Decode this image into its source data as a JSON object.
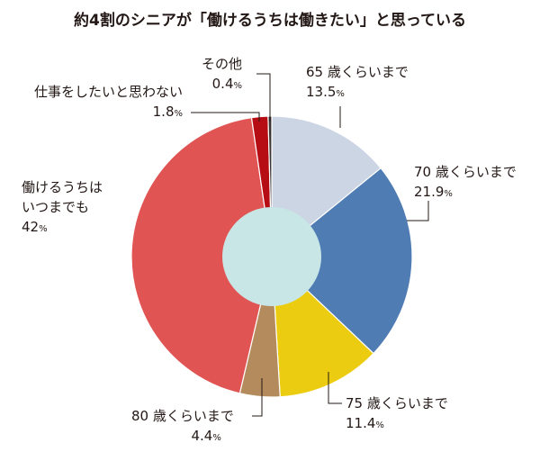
{
  "chart_data": {
    "type": "pie",
    "title": "約4割のシニアが「働けるうちは働きたい」と思っている",
    "unit": "%",
    "slices": [
      {
        "label": "65 歳くらいまで",
        "value": 13.5,
        "value_text": "13.5",
        "color": "#ccd5e4"
      },
      {
        "label": "70 歳くらいまで",
        "value": 21.9,
        "value_text": "21.9",
        "color": "#4e7cb3"
      },
      {
        "label": "75 歳くらいまで",
        "value": 11.4,
        "value_text": "11.4",
        "color": "#eccc10"
      },
      {
        "label": "80 歳くらいまで",
        "value": 4.4,
        "value_text": "4.4",
        "color": "#b48b5c"
      },
      {
        "label": "働けるうちはいつまでも",
        "value": 42,
        "value_text": "42",
        "color": "#e05553"
      },
      {
        "label": "仕事をしたいと思わない",
        "value": 1.8,
        "value_text": "1.8",
        "color": "#b50d13"
      },
      {
        "label": "その他",
        "value": 0.4,
        "value_text": "0.4",
        "color": "#3a3533"
      }
    ],
    "center_color": "#c8e6e5",
    "legend": "none"
  },
  "labels": {
    "s0": {
      "line1": "65 歳くらいまで",
      "value": "13.5"
    },
    "s1": {
      "line1": "70 歳くらいまで",
      "value": "21.9"
    },
    "s2": {
      "line1": "75 歳くらいまで",
      "value": "11.4"
    },
    "s3": {
      "line1": "80 歳くらいまで",
      "value": "4.4"
    },
    "s4": {
      "line1": "働けるうちは",
      "line2": "いつまでも",
      "value": "42"
    },
    "s5": {
      "line1": "仕事をしたいと思わない",
      "value": "1.8"
    },
    "s6": {
      "line1": "その他",
      "value": "0.4"
    },
    "pct_sign": "%"
  }
}
